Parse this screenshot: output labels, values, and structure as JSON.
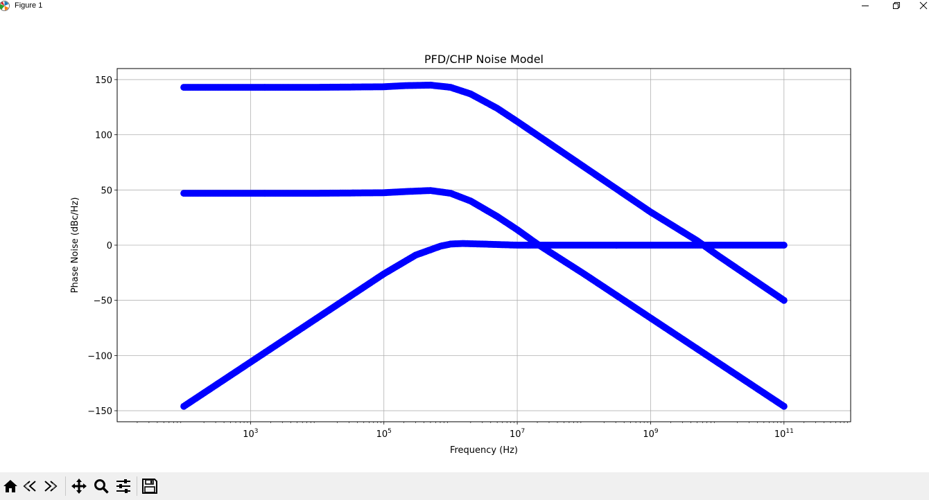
{
  "window": {
    "title": "Figure 1",
    "icon": "matplotlib-icon"
  },
  "window_controls": {
    "minimize_icon": "minimize-icon",
    "restore_icon": "restore-icon",
    "close_icon": "close-icon"
  },
  "toolbar": {
    "buttons": [
      {
        "name": "home-button",
        "icon": "home-icon"
      },
      {
        "name": "back-button",
        "icon": "back-arrow-icon"
      },
      {
        "name": "forward-button",
        "icon": "forward-arrow-icon"
      },
      {
        "name": "pan-button",
        "icon": "move-icon"
      },
      {
        "name": "zoom-button",
        "icon": "magnifier-icon"
      },
      {
        "name": "configure-subplots-button",
        "icon": "sliders-icon"
      },
      {
        "name": "save-button",
        "icon": "floppy-disk-icon"
      }
    ]
  },
  "chart_data": {
    "type": "scatter",
    "title": "PFD/CHP Noise Model",
    "xlabel": "Frequency (Hz)",
    "ylabel": "Phase Noise (dBc/Hz)",
    "xscale": "log",
    "xlim": [
      10,
      1000000000000
    ],
    "ylim": [
      -160,
      160
    ],
    "xticks": [
      {
        "value": 1000,
        "base": "10",
        "exp": "3"
      },
      {
        "value": 100000,
        "base": "10",
        "exp": "5"
      },
      {
        "value": 10000000,
        "base": "10",
        "exp": "7"
      },
      {
        "value": 1000000000,
        "base": "10",
        "exp": "9"
      },
      {
        "value": 100000000000,
        "base": "10",
        "exp": "11"
      }
    ],
    "yticks": [
      {
        "value": 150,
        "label": "150"
      },
      {
        "value": 100,
        "label": "100"
      },
      {
        "value": 50,
        "label": "50"
      },
      {
        "value": 0,
        "label": "0"
      },
      {
        "value": -50,
        "label": "−50"
      },
      {
        "value": -100,
        "label": "−100"
      },
      {
        "value": -150,
        "label": "−150"
      }
    ],
    "grid": true,
    "marker_color": "#0000ff",
    "series": [
      {
        "x": [
          100,
          1000,
          10000,
          100000,
          200000,
          500000,
          1000000,
          2000000,
          5000000,
          10000000,
          100000000,
          1000000000,
          5000000000,
          10000000000,
          100000000000
        ],
        "y": [
          143,
          143,
          143,
          143.5,
          144.5,
          145,
          143,
          137,
          124,
          112,
          71,
          30,
          4,
          -9,
          -50
        ]
      },
      {
        "x": [
          100,
          1000,
          10000,
          100000,
          200000,
          500000,
          1000000,
          2000000,
          5000000,
          10000000,
          20000000,
          100000000,
          1000000000,
          10000000000,
          100000000000
        ],
        "y": [
          47,
          47,
          47,
          47.5,
          48.5,
          49.5,
          47,
          40,
          26,
          14,
          1,
          -26,
          -66,
          -106,
          -146
        ]
      },
      {
        "x": [
          100,
          1000,
          10000,
          100000,
          300000,
          700000,
          1000000,
          1500000,
          3000000,
          10000000,
          100000000,
          1000000000,
          10000000000,
          100000000000
        ],
        "y": [
          -146,
          -106,
          -66,
          -26,
          -9,
          -1,
          1,
          1.5,
          1,
          0,
          0,
          0,
          0,
          0
        ]
      }
    ]
  }
}
